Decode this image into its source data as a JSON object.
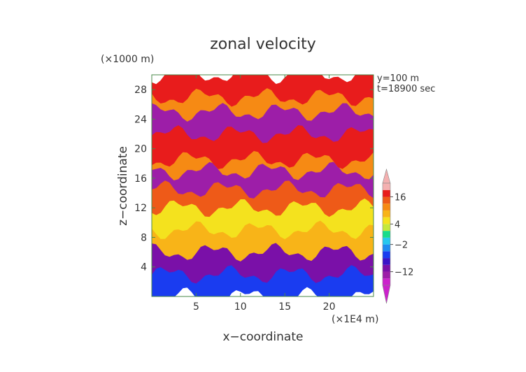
{
  "chart_data": {
    "type": "heatmap",
    "title": "zonal velocity",
    "xlabel": "x−coordinate",
    "ylabel": "z−coordinate",
    "x_unit": "(×1E4 m)",
    "y_unit": "(×1000 m)",
    "annotations": [
      "y=100 m",
      "t=18900 sec"
    ],
    "xlim": [
      0,
      25
    ],
    "ylim": [
      0,
      30
    ],
    "xticks": [
      5,
      10,
      15,
      20
    ],
    "yticks": [
      4,
      8,
      12,
      16,
      20,
      24,
      28
    ],
    "colorbar": {
      "labels": [
        {
          "value": 16,
          "text": "16"
        },
        {
          "value": 4,
          "text": "4"
        },
        {
          "value": -2,
          "text": "−2"
        },
        {
          "value": -12,
          "text": "−12"
        }
      ],
      "levels": [
        -20,
        -16,
        -12,
        -8,
        -6,
        -4,
        -2,
        0,
        2,
        4,
        6,
        8,
        12,
        16,
        20
      ],
      "colors": [
        "#cc22cc",
        "#9d1ea8",
        "#7a10a8",
        "#3a14c8",
        "#1a3cf0",
        "#1f8cf0",
        "#26c8ee",
        "#18dc8a",
        "#c4e83c",
        "#f4e21e",
        "#f8b418",
        "#f68a14",
        "#ee5a18",
        "#e81c1c",
        "#f4b0b0"
      ]
    },
    "grid": false,
    "legend": "colorbar-right",
    "layers": [
      {
        "z_bottom": 0,
        "z_top": 3,
        "value": -6
      },
      {
        "z_bottom": 3,
        "z_top": 6,
        "value": -10
      },
      {
        "z_bottom": 6,
        "z_top": 9,
        "value": 6
      },
      {
        "z_bottom": 9,
        "z_top": 12,
        "value": 4
      },
      {
        "z_bottom": 12,
        "z_top": 14.5,
        "value": 12
      },
      {
        "z_bottom": 14.5,
        "z_top": 17,
        "value": -16
      },
      {
        "z_bottom": 17,
        "z_top": 18.5,
        "value": 8
      },
      {
        "z_bottom": 18.5,
        "z_top": 22,
        "value": 18
      },
      {
        "z_bottom": 22,
        "z_top": 25,
        "value": -16
      },
      {
        "z_bottom": 25,
        "z_top": 27,
        "value": 8
      },
      {
        "z_bottom": 27,
        "z_top": 30,
        "value": 18
      }
    ]
  },
  "colors": {
    "axis": "#4a8a4a",
    "text": "#333333"
  }
}
